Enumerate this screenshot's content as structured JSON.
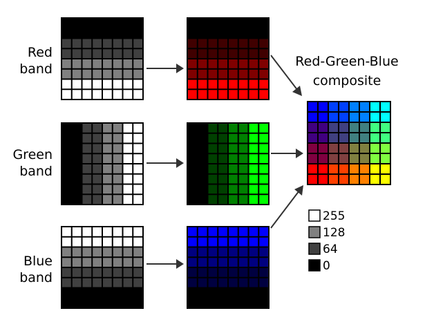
{
  "labels": {
    "red_band": [
      "Red",
      "band"
    ],
    "green_band": [
      "Green",
      "band"
    ],
    "blue_band": [
      "Blue",
      "band"
    ],
    "composite": [
      "Red-Green-Blue",
      "composite"
    ]
  },
  "legend": [
    {
      "value": "255",
      "color": "#ffffff"
    },
    {
      "value": "128",
      "color": "#808080"
    },
    {
      "value": "64",
      "color": "#404040"
    },
    {
      "value": "0",
      "color": "#000000"
    }
  ],
  "grid": {
    "rows": 8,
    "cols": 8
  },
  "bands": {
    "red": {
      "pattern": "rows",
      "levels": [
        0,
        0,
        64,
        64,
        128,
        128,
        255,
        255
      ]
    },
    "green": {
      "pattern": "cols",
      "levels": [
        0,
        0,
        64,
        64,
        128,
        128,
        255,
        255
      ]
    },
    "blue": {
      "pattern": "rows",
      "levels": [
        255,
        255,
        128,
        128,
        64,
        64,
        0,
        0
      ]
    }
  },
  "colors": {
    "grid_line": "#000000",
    "cell_line_light": "#000000",
    "arrow": "#333333"
  }
}
